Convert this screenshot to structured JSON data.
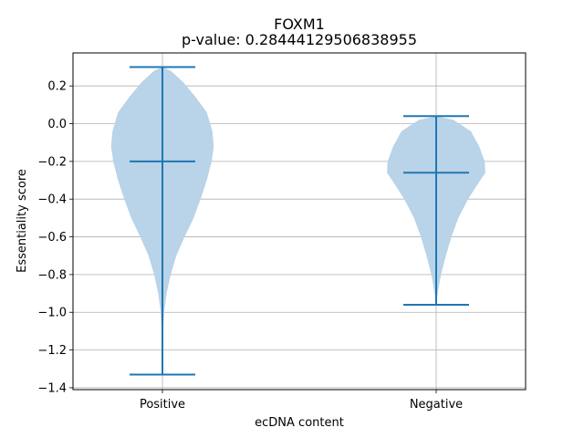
{
  "chart_data": {
    "type": "violin",
    "title": "FOXM1",
    "subtitle": "p-value: 0.28444129506838955",
    "xlabel": "ecDNA content",
    "ylabel": "Essentiality score",
    "categories": [
      "Positive",
      "Negative"
    ],
    "ylim": [
      -1.41,
      0.375
    ],
    "yticks": [
      -1.4,
      -1.2,
      -1.0,
      -0.8,
      -0.6,
      -0.4,
      -0.2,
      0.0,
      0.2
    ],
    "ytick_labels": [
      "−1.4",
      "−1.2",
      "−1.0",
      "−0.8",
      "−0.6",
      "−0.4",
      "−0.2",
      "0.0",
      "0.2"
    ],
    "grid": true,
    "violin_color": "#b9d3e8",
    "line_color": "#1f77b4",
    "violins": [
      {
        "category": "Positive",
        "min": -1.33,
        "max": 0.3,
        "mean": -0.2,
        "profile": [
          [
            0.3,
            0.0
          ],
          [
            0.28,
            0.12
          ],
          [
            0.22,
            0.3
          ],
          [
            0.14,
            0.48
          ],
          [
            0.06,
            0.64
          ],
          [
            -0.04,
            0.72
          ],
          [
            -0.12,
            0.74
          ],
          [
            -0.2,
            0.71
          ],
          [
            -0.3,
            0.64
          ],
          [
            -0.4,
            0.55
          ],
          [
            -0.5,
            0.45
          ],
          [
            -0.6,
            0.32
          ],
          [
            -0.7,
            0.2
          ],
          [
            -0.8,
            0.12
          ],
          [
            -0.9,
            0.06
          ],
          [
            -1.0,
            0.025
          ],
          [
            -1.1,
            0.01
          ],
          [
            -1.2,
            0.005
          ],
          [
            -1.33,
            0.0
          ]
        ]
      },
      {
        "category": "Negative",
        "min": -0.96,
        "max": 0.04,
        "mean": -0.26,
        "profile": [
          [
            0.04,
            0.0
          ],
          [
            0.02,
            0.25
          ],
          [
            -0.04,
            0.5
          ],
          [
            -0.12,
            0.62
          ],
          [
            -0.2,
            0.7
          ],
          [
            -0.26,
            0.71
          ],
          [
            -0.32,
            0.6
          ],
          [
            -0.4,
            0.46
          ],
          [
            -0.5,
            0.32
          ],
          [
            -0.6,
            0.22
          ],
          [
            -0.7,
            0.14
          ],
          [
            -0.8,
            0.07
          ],
          [
            -0.88,
            0.03
          ],
          [
            -0.96,
            0.0
          ]
        ]
      }
    ]
  }
}
